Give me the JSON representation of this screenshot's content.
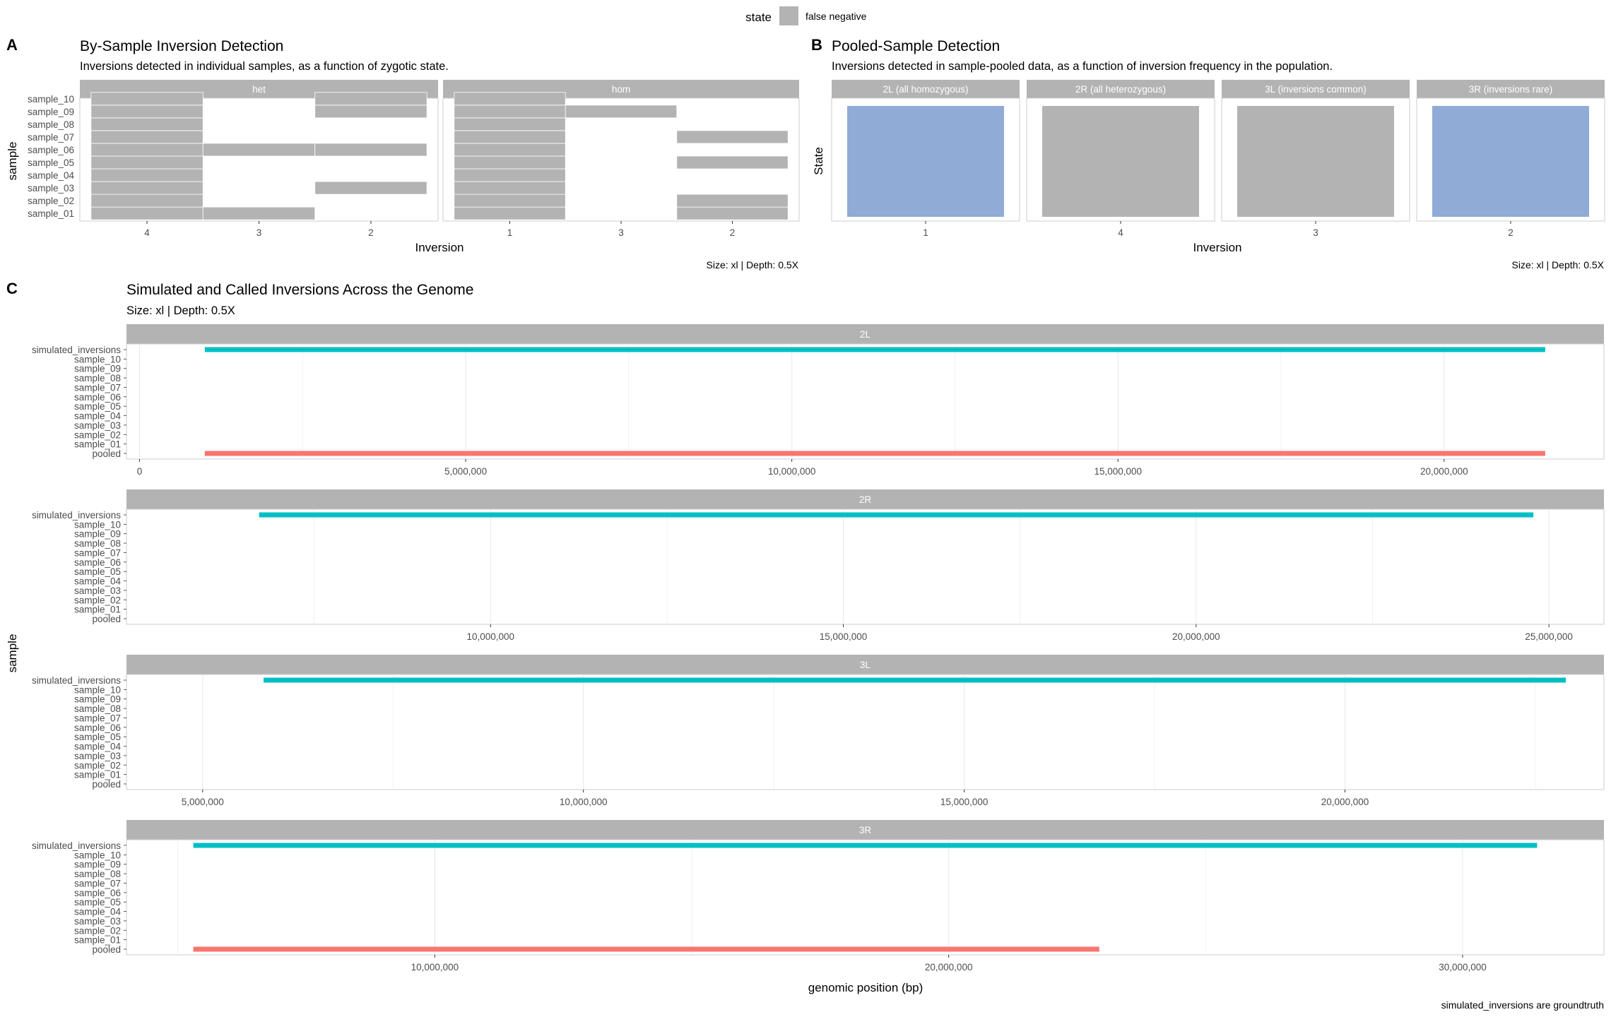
{
  "legend": {
    "title": "state",
    "label": "false negative",
    "color": "#b3b3b3"
  },
  "chart_data": [
    {
      "panel": "A",
      "type": "heatmap",
      "title": "By-Sample Inversion Detection",
      "subtitle": "Inversions detected in individual samples, as a function of zygotic state.",
      "xlabel": "Inversion",
      "ylabel": "sample",
      "caption": "Size: xl | Depth: 0.5X",
      "samples": [
        "sample_01",
        "sample_02",
        "sample_03",
        "sample_04",
        "sample_05",
        "sample_06",
        "sample_07",
        "sample_08",
        "sample_09",
        "sample_10"
      ],
      "facets": [
        {
          "label": "het",
          "x": [
            "4",
            "3",
            "2"
          ],
          "cells": [
            {
              "x": "4",
              "samples": [
                "sample_01",
                "sample_02",
                "sample_03",
                "sample_04",
                "sample_05",
                "sample_06",
                "sample_07",
                "sample_08",
                "sample_09",
                "sample_10"
              ],
              "state": "false negative"
            },
            {
              "x": "3",
              "samples": [
                "sample_01",
                "sample_06"
              ],
              "state": "false negative"
            },
            {
              "x": "2",
              "samples": [
                "sample_03",
                "sample_06",
                "sample_09",
                "sample_10"
              ],
              "state": "false negative"
            }
          ]
        },
        {
          "label": "hom",
          "x": [
            "1",
            "3",
            "2"
          ],
          "cells": [
            {
              "x": "1",
              "samples": [
                "sample_01",
                "sample_02",
                "sample_03",
                "sample_04",
                "sample_05",
                "sample_06",
                "sample_07",
                "sample_08",
                "sample_09",
                "sample_10"
              ],
              "state": "false negative"
            },
            {
              "x": "3",
              "samples": [
                "sample_09"
              ],
              "state": "false negative"
            },
            {
              "x": "2",
              "samples": [
                "sample_01",
                "sample_02",
                "sample_05",
                "sample_07"
              ],
              "state": "false negative"
            }
          ]
        }
      ]
    },
    {
      "panel": "B",
      "type": "bar",
      "title": "Pooled-Sample Detection",
      "subtitle": "Inversions detected in sample-pooled data, as a function of inversion frequency in the population.",
      "xlabel": "Inversion",
      "ylabel": "State",
      "caption": "Size: xl | Depth: 0.5X",
      "facets": [
        {
          "label": "2L (all homozygous)",
          "category": "1",
          "color": "#8fabd6"
        },
        {
          "label": "2R (all heterozygous)",
          "category": "4",
          "color": "#b3b3b3"
        },
        {
          "label": "3L (inversions common)",
          "category": "3",
          "color": "#b3b3b3"
        },
        {
          "label": "3R (inversions rare)",
          "category": "2",
          "color": "#8fabd6"
        }
      ]
    },
    {
      "panel": "C",
      "type": "line",
      "title": "Simulated and Called Inversions Across the Genome",
      "subtitle": "Size: xl | Depth: 0.5X",
      "xlabel": "genomic position (bp)",
      "ylabel": "sample",
      "caption": "simulated_inversions are groundtruth",
      "rows": [
        "simulated_inversions",
        "sample_10",
        "sample_09",
        "sample_08",
        "sample_07",
        "sample_06",
        "sample_05",
        "sample_04",
        "sample_03",
        "sample_02",
        "sample_01",
        "pooled"
      ],
      "series_colors": {
        "simulated_inversions": "#00bfc4",
        "pooled": "#f8766d"
      },
      "facets": [
        {
          "label": "2L",
          "xlim": [
            -200000,
            22450000
          ],
          "ticks": [
            0,
            5000000,
            10000000,
            15000000,
            20000000
          ],
          "tick_labels": [
            "0",
            "5,000,000",
            "10,000,000",
            "15,000,000",
            "20,000,000"
          ],
          "segments": [
            {
              "sample": "simulated_inversions",
              "start": 1000000,
              "end": 21550000
            },
            {
              "sample": "pooled",
              "start": 1000000,
              "end": 21550000
            }
          ]
        },
        {
          "label": "2R",
          "xlim": [
            4840000,
            25780000
          ],
          "ticks": [
            10000000,
            15000000,
            20000000,
            25000000
          ],
          "tick_labels": [
            "10,000,000",
            "15,000,000",
            "20,000,000",
            "25,000,000"
          ],
          "segments": [
            {
              "sample": "simulated_inversions",
              "start": 6720000,
              "end": 24780000
            }
          ]
        },
        {
          "label": "3L",
          "xlim": [
            4000000,
            23400000
          ],
          "ticks": [
            5000000,
            10000000,
            15000000,
            20000000
          ],
          "tick_labels": [
            "5,000,000",
            "10,000,000",
            "15,000,000",
            "20,000,000"
          ],
          "segments": [
            {
              "sample": "simulated_inversions",
              "start": 5800000,
              "end": 22900000
            }
          ]
        },
        {
          "label": "3R",
          "xlim": [
            4000000,
            32750000
          ],
          "ticks": [
            10000000,
            20000000,
            30000000
          ],
          "tick_labels": [
            "10,000,000",
            "20,000,000",
            "30,000,000"
          ],
          "segments": [
            {
              "sample": "simulated_inversions",
              "start": 5300000,
              "end": 31450000
            },
            {
              "sample": "pooled",
              "start": 5300000,
              "end": 22930000
            }
          ]
        }
      ]
    }
  ]
}
